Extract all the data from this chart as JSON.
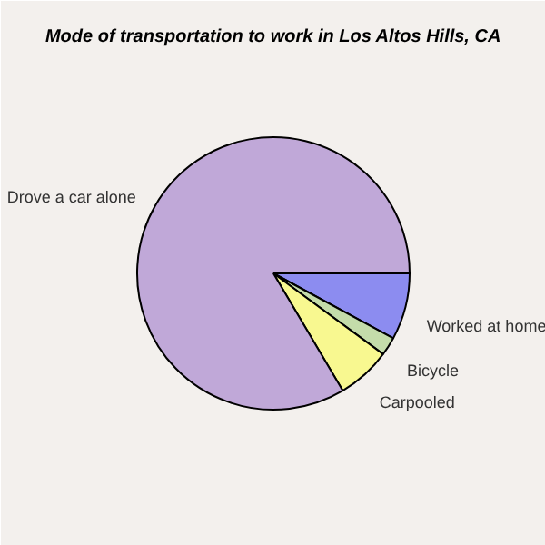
{
  "chart_data": {
    "type": "pie",
    "title": "Mode of transportation to work in Los Altos Hills, CA",
    "categories": [
      "Worked at home",
      "Bicycle",
      "Carpooled",
      "Drove a car alone"
    ],
    "values": [
      7.9,
      2.2,
      6.4,
      83.5
    ],
    "colors": [
      "#8c8cf0",
      "#c4dcaa",
      "#f8f890",
      "#c0a8d8"
    ]
  }
}
